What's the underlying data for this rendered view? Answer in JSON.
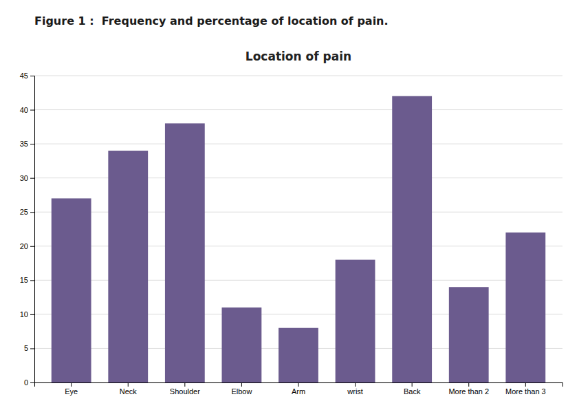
{
  "chart_data": {
    "type": "bar",
    "title": "Location of pain",
    "annotations": [
      "Figure 1 :  Frequency and percentage of location of pain."
    ],
    "categories": [
      "Eye",
      "Neck",
      "Shoulder",
      "Elbow",
      "Arm",
      "wrist",
      "Back",
      "More than 2",
      "More than 3"
    ],
    "values": [
      27,
      34,
      38,
      11,
      8,
      18,
      42,
      14,
      22
    ],
    "color": "#6B5B8E",
    "ylim": [
      0,
      45
    ],
    "yticks": [
      0,
      5,
      10,
      15,
      20,
      25,
      30,
      35,
      40,
      45
    ],
    "grid": true
  }
}
